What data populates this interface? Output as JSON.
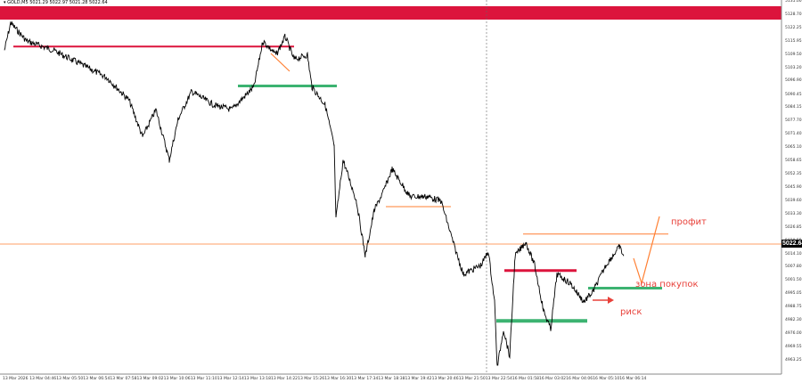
{
  "header": {
    "symbol": "GOLD,M5",
    "ohlc": "5021.29 5022.97 5021.28 5022.64"
  },
  "colors": {
    "band": "#dc143c",
    "red_level": "#dc143c",
    "green_level": "#3cb371",
    "orange": "#ff7f32",
    "annotation": "#e8413a",
    "price_line": "#000000"
  },
  "chart_data": {
    "type": "line",
    "symbol": "GOLD",
    "timeframe": "M5",
    "price_axis_labels": [
      "5135.00",
      "5128.70",
      "5122.25",
      "5115.95",
      "5109.50",
      "5103.20",
      "5096.90",
      "5090.45",
      "5084.15",
      "5077.70",
      "5071.40",
      "5065.10",
      "5058.65",
      "5052.35",
      "5045.90",
      "5039.60",
      "5033.30",
      "5026.85",
      "5020.55",
      "5014.10",
      "5007.80",
      "5001.50",
      "4995.05",
      "4988.75",
      "4982.30",
      "4976.00",
      "4969.55",
      "4963.25"
    ],
    "ylim": [
      4963.25,
      5135.0
    ],
    "current_price": "5022.64",
    "time_axis_labels": [
      "13 Mar 2026",
      "13 Mar 04:46",
      "13 Mar 05:50",
      "13 Mar 06:54",
      "13 Mar 07:58",
      "13 Mar 09:02",
      "13 Mar 10:06",
      "13 Mar 11:10",
      "13 Mar 12:14",
      "13 Mar 13:18",
      "13 Mar 14:22",
      "13 Mar 15:26",
      "13 Mar 16:30",
      "13 Mar 17:34",
      "13 Mar 18:38",
      "13 Mar 19:42",
      "13 Mar 20:46",
      "13 Mar 21:50",
      "13 Mar 22:54",
      "16 Mar 01:58",
      "16 Mar 03:02",
      "16 Mar 04:06",
      "16 Mar 05:10",
      "16 Mar 06:14"
    ],
    "price_path": [
      5111.8,
      5124.9,
      5116.2,
      5111.8,
      5105.3,
      5098.7,
      5087.8,
      5070.3,
      5083.4,
      5059.3,
      5079.0,
      5092.1,
      5085.6,
      5083.4,
      5094.3,
      5116.2,
      5109.6,
      5118.4,
      5107.4,
      5109.6,
      5094.3,
      5085.6,
      5065.9,
      5030.9,
      5059.3,
      5039.6,
      5013.4,
      5035.3,
      5044.0,
      5054.9,
      5041.8,
      5041.8,
      5039.6,
      5017.8,
      5004.6,
      5009.0,
      5015.6,
      4991.5,
      4960.0,
      4978.4,
      4965.2,
      5013.4,
      5020.0,
      5009.0,
      4987.1,
      4978.4,
      5004.6,
      5000.3,
      4991.5,
      4995.9,
      5009.0,
      5017.8,
      5013.4
    ],
    "levels": [
      {
        "kind": "resistance",
        "color": "red",
        "price": 5113.6
      },
      {
        "kind": "support",
        "color": "green",
        "price": 5094.7
      },
      {
        "kind": "level",
        "color": "orange",
        "price": 5037.0
      },
      {
        "kind": "resistance",
        "color": "red",
        "price": 5006.4
      },
      {
        "kind": "target",
        "color": "orange",
        "price": 5023.9
      },
      {
        "kind": "support",
        "color": "green",
        "price": 4998.0
      },
      {
        "kind": "support",
        "color": "green",
        "price": 4982.3
      }
    ],
    "annotations": {
      "profit": "профит",
      "buy_zone": "зона покупок",
      "risk": "риск"
    }
  }
}
